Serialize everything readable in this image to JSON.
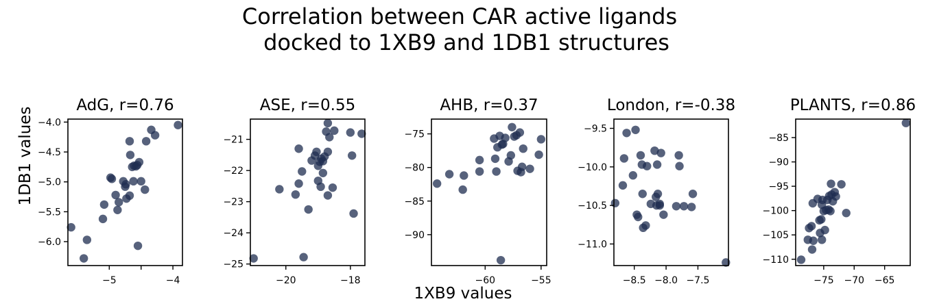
{
  "figure": {
    "title_lines": [
      "Correlation between CAR active ligands",
      "docked to 1XB9 and 1DB1 structures"
    ],
    "shared_xlabel": "1XB9 values",
    "shared_ylabel": "1DB1 values",
    "marker_color": "#1f2d50",
    "marker_opacity": 0.75
  },
  "chart_data": [
    {
      "type": "scatter",
      "title": "AdG, r=0.76",
      "xlim": [
        -5.65,
        -3.85
      ],
      "ylim": [
        -6.4,
        -3.95
      ],
      "xticks": [
        -5,
        -4.5,
        -4
      ],
      "xtick_labels": [
        "−5",
        "",
        "−4"
      ],
      "yticks": [
        -4.0,
        -4.5,
        -5.0,
        -5.5,
        -6.0
      ],
      "ytick_labels": [
        "−4.0",
        "−4.5",
        "−5.0",
        "−5.5",
        "−6.0"
      ],
      "points": [
        [
          -5.6,
          -5.76
        ],
        [
          -5.4,
          -6.28
        ],
        [
          -5.35,
          -5.97
        ],
        [
          -5.1,
          -5.62
        ],
        [
          -5.08,
          -5.38
        ],
        [
          -4.98,
          -4.93
        ],
        [
          -4.96,
          -4.95
        ],
        [
          -4.9,
          -5.22
        ],
        [
          -4.87,
          -5.47
        ],
        [
          -4.85,
          -5.34
        ],
        [
          -4.78,
          -4.99
        ],
        [
          -4.75,
          -5.08
        ],
        [
          -4.74,
          -5.04
        ],
        [
          -4.73,
          -5.28
        ],
        [
          -4.68,
          -5.23
        ],
        [
          -4.68,
          -4.32
        ],
        [
          -4.67,
          -4.55
        ],
        [
          -4.64,
          -4.75
        ],
        [
          -4.62,
          -4.99
        ],
        [
          -4.61,
          -4.73
        ],
        [
          -4.58,
          -4.74
        ],
        [
          -4.56,
          -4.72
        ],
        [
          -4.55,
          -6.07
        ],
        [
          -4.53,
          -4.67
        ],
        [
          -4.5,
          -4.99
        ],
        [
          -4.44,
          -5.13
        ],
        [
          -4.42,
          -4.32
        ],
        [
          -4.34,
          -4.13
        ],
        [
          -4.28,
          -4.22
        ],
        [
          -3.92,
          -4.05
        ]
      ]
    },
    {
      "type": "scatter",
      "title": "ASE, r=0.55",
      "xlim": [
        -21.1,
        -17.55
      ],
      "ylim": [
        -25.05,
        -20.35
      ],
      "xticks": [
        -20,
        -18
      ],
      "xtick_labels": [
        "−20",
        "−18"
      ],
      "yticks": [
        -21,
        -22,
        -23,
        -24,
        -25
      ],
      "ytick_labels": [
        "−21",
        "−22",
        "−23",
        "−24",
        "−25"
      ],
      "points": [
        [
          -21.0,
          -24.82
        ],
        [
          -20.2,
          -22.6
        ],
        [
          -19.7,
          -22.77
        ],
        [
          -19.6,
          -21.3
        ],
        [
          -19.6,
          -22.42
        ],
        [
          -19.5,
          -22.03
        ],
        [
          -19.45,
          -24.78
        ],
        [
          -19.3,
          -23.25
        ],
        [
          -19.2,
          -21.68
        ],
        [
          -19.1,
          -21.52
        ],
        [
          -19.05,
          -21.4
        ],
        [
          -19.0,
          -21.85
        ],
        [
          -19.0,
          -22.33
        ],
        [
          -18.95,
          -21.72
        ],
        [
          -18.92,
          -22.52
        ],
        [
          -18.9,
          -21.62
        ],
        [
          -18.85,
          -22.08
        ],
        [
          -18.85,
          -21.7
        ],
        [
          -18.8,
          -21.55
        ],
        [
          -18.75,
          -20.75
        ],
        [
          -18.7,
          -20.48
        ],
        [
          -18.7,
          -21.4
        ],
        [
          -18.7,
          -22.8
        ],
        [
          -18.65,
          -20.93
        ],
        [
          -18.55,
          -22.55
        ],
        [
          -18.5,
          -20.72
        ],
        [
          -18.0,
          -20.78
        ],
        [
          -17.95,
          -21.52
        ],
        [
          -17.9,
          -23.38
        ],
        [
          -17.65,
          -20.82
        ]
      ]
    },
    {
      "type": "scatter",
      "title": "AHB, r=0.37",
      "xlim": [
        -64.8,
        -54.5
      ],
      "ylim": [
        -94.6,
        -72.8
      ],
      "xticks": [
        -60,
        -55
      ],
      "xtick_labels": [
        "−60",
        "−55"
      ],
      "yticks": [
        -75,
        -80,
        -85,
        -90
      ],
      "ytick_labels": [
        "−75",
        "−80",
        "−85",
        "−90"
      ],
      "points": [
        [
          -64.3,
          -82.4
        ],
        [
          -63.2,
          -81.0
        ],
        [
          -62.0,
          -83.3
        ],
        [
          -61.9,
          -81.2
        ],
        [
          -60.5,
          -80.6
        ],
        [
          -60.5,
          -78.9
        ],
        [
          -59.2,
          -75.7
        ],
        [
          -59.1,
          -78.7
        ],
        [
          -59.0,
          -80.6
        ],
        [
          -58.9,
          -77.0
        ],
        [
          -58.7,
          -75.3
        ],
        [
          -58.6,
          -93.8
        ],
        [
          -58.5,
          -76.6
        ],
        [
          -58.4,
          -76.5
        ],
        [
          -58.2,
          -75.6
        ],
        [
          -57.9,
          -79.1
        ],
        [
          -57.7,
          -78.2
        ],
        [
          -57.6,
          -74.0
        ],
        [
          -57.4,
          -75.4
        ],
        [
          -57.2,
          -75.2
        ],
        [
          -57.1,
          -80.5
        ],
        [
          -56.9,
          -74.8
        ],
        [
          -56.8,
          -80.7
        ],
        [
          -56.7,
          -79.9
        ],
        [
          -56.6,
          -77.2
        ],
        [
          -56.0,
          -80.2
        ],
        [
          -55.2,
          -78.1
        ],
        [
          -55.0,
          -75.8
        ]
      ]
    },
    {
      "type": "scatter",
      "title": "London, r=-0.38",
      "xlim": [
        -8.82,
        -7.02
      ],
      "ylim": [
        -11.28,
        -9.38
      ],
      "xticks": [
        -8.5,
        -8.0,
        -7.5
      ],
      "xtick_labels": [
        "−8.5",
        "−8.0",
        "−7.5"
      ],
      "yticks": [
        -9.5,
        -10.0,
        -10.5,
        -11.0
      ],
      "ytick_labels": [
        "−9.5",
        "−10.0",
        "−10.5",
        "−11.0"
      ],
      "points": [
        [
          -8.8,
          -10.47
        ],
        [
          -8.68,
          -10.24
        ],
        [
          -8.66,
          -9.89
        ],
        [
          -8.62,
          -9.56
        ],
        [
          -8.52,
          -10.11
        ],
        [
          -8.48,
          -9.52
        ],
        [
          -8.46,
          -10.62
        ],
        [
          -8.44,
          -10.65
        ],
        [
          -8.4,
          -9.85
        ],
        [
          -8.38,
          -9.97
        ],
        [
          -8.37,
          -10.35
        ],
        [
          -8.36,
          -10.79
        ],
        [
          -8.32,
          -10.76
        ],
        [
          -8.3,
          -9.99
        ],
        [
          -8.24,
          -10.48
        ],
        [
          -8.18,
          -9.79
        ],
        [
          -8.16,
          -10.39
        ],
        [
          -8.15,
          -10.5
        ],
        [
          -8.14,
          -9.97
        ],
        [
          -8.13,
          -10.35
        ],
        [
          -8.1,
          -10.48
        ],
        [
          -8.1,
          -10.5
        ],
        [
          -8.08,
          -9.82
        ],
        [
          -8.04,
          -10.62
        ],
        [
          -7.84,
          -10.51
        ],
        [
          -7.8,
          -9.85
        ],
        [
          -7.79,
          -9.99
        ],
        [
          -7.72,
          -10.51
        ],
        [
          -7.6,
          -10.52
        ],
        [
          -7.58,
          -10.35
        ],
        [
          -7.06,
          -11.24
        ]
      ]
    },
    {
      "type": "scatter",
      "title": "PLANTS, r=0.86",
      "xlim": [
        -79.6,
        -60.8
      ],
      "ylim": [
        -111.3,
        -81.2
      ],
      "xticks": [
        -75,
        -70,
        -65
      ],
      "xtick_labels": [
        "−75",
        "−70",
        "−65"
      ],
      "yticks": [
        -85,
        -90,
        -95,
        -100,
        -105,
        -110
      ],
      "ytick_labels": [
        "−85",
        "−90",
        "−95",
        "−100",
        "−105",
        "−110"
      ],
      "points": [
        [
          -78.7,
          -110.1
        ],
        [
          -77.6,
          -106.0
        ],
        [
          -77.4,
          -103.6
        ],
        [
          -77.0,
          -103.2
        ],
        [
          -76.9,
          -108.0
        ],
        [
          -76.8,
          -98.5
        ],
        [
          -76.7,
          -106.2
        ],
        [
          -76.0,
          -97.6
        ],
        [
          -75.7,
          -102.0
        ],
        [
          -75.6,
          -104.6
        ],
        [
          -75.4,
          -101.8
        ],
        [
          -75.3,
          -106.0
        ],
        [
          -75.3,
          -98.8
        ],
        [
          -75.2,
          -97.8
        ],
        [
          -75.0,
          -100.1
        ],
        [
          -74.8,
          -104.0
        ],
        [
          -74.6,
          -99.9
        ],
        [
          -74.4,
          -97.8
        ],
        [
          -74.2,
          -99.8
        ],
        [
          -74.1,
          -97.0
        ],
        [
          -73.9,
          -100.1
        ],
        [
          -73.8,
          -94.5
        ],
        [
          -73.7,
          -96.7
        ],
        [
          -73.5,
          -98.1
        ],
        [
          -73.2,
          -96.2
        ],
        [
          -73.0,
          -97.1
        ],
        [
          -72.1,
          -94.6
        ],
        [
          -71.3,
          -100.5
        ],
        [
          -61.5,
          -82.0
        ]
      ]
    }
  ]
}
